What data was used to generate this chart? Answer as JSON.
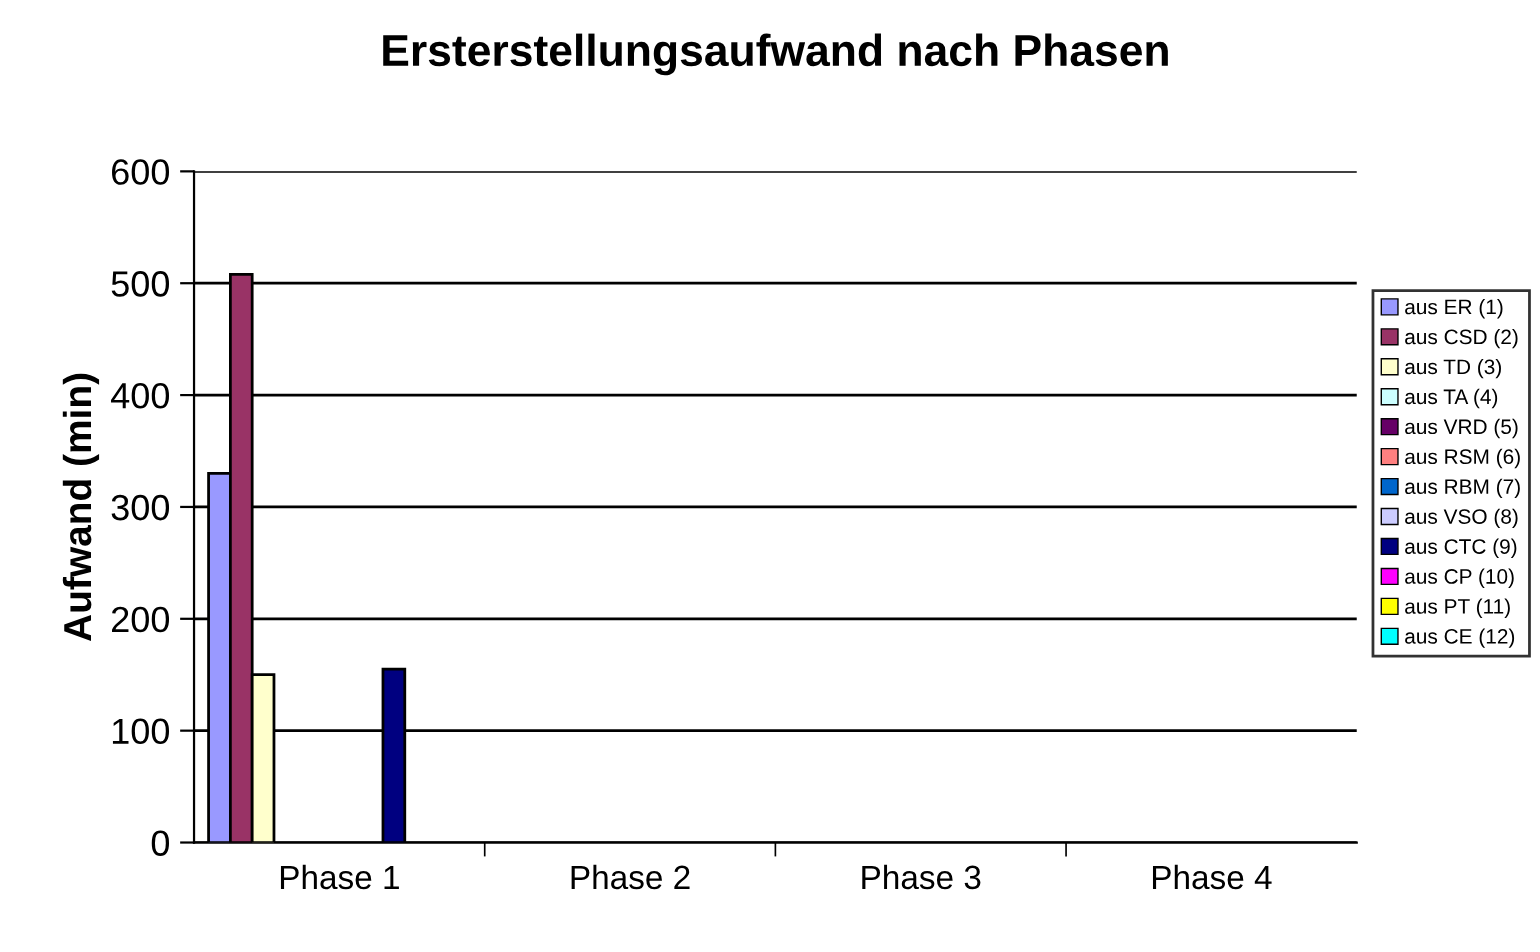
{
  "chart_data": {
    "type": "bar",
    "title": "Ersterstellungsaufwand nach Phasen",
    "ylabel": "Aufwand (min)",
    "categories": [
      "Phase 1",
      "Phase 2",
      "Phase 3",
      "Phase 4"
    ],
    "series": [
      {
        "name": "aus ER (1)",
        "color": "#9999ff",
        "values": [
          330,
          null,
          null,
          null
        ]
      },
      {
        "name": "aus CSD (2)",
        "color": "#993366",
        "values": [
          508,
          null,
          null,
          null
        ]
      },
      {
        "name": "aus TD (3)",
        "color": "#ffffcc",
        "values": [
          150,
          null,
          null,
          null
        ]
      },
      {
        "name": "aus TA (4)",
        "color": "#ccffff",
        "values": [
          null,
          null,
          null,
          null
        ]
      },
      {
        "name": "aus VRD (5)",
        "color": "#660066",
        "values": [
          null,
          null,
          null,
          null
        ]
      },
      {
        "name": "aus RSM (6)",
        "color": "#ff8080",
        "values": [
          null,
          null,
          null,
          null
        ]
      },
      {
        "name": "aus RBM (7)",
        "color": "#0066cc",
        "values": [
          null,
          null,
          null,
          null
        ]
      },
      {
        "name": "aus VSO (8)",
        "color": "#ccccff",
        "values": [
          null,
          null,
          null,
          null
        ]
      },
      {
        "name": "aus CTC (9)",
        "color": "#000080",
        "values": [
          155,
          null,
          null,
          null
        ]
      },
      {
        "name": "aus CP (10)",
        "color": "#ff00ff",
        "values": [
          null,
          null,
          null,
          null
        ]
      },
      {
        "name": "aus PT (11)",
        "color": "#ffff00",
        "values": [
          null,
          null,
          null,
          null
        ]
      },
      {
        "name": "aus CE (12)",
        "color": "#00ffff",
        "values": [
          null,
          null,
          null,
          null
        ]
      }
    ],
    "ylim": [
      0,
      600
    ],
    "yticks": [
      0,
      100,
      200,
      300,
      400,
      500,
      600
    ],
    "grid": "y",
    "legend": "right"
  }
}
